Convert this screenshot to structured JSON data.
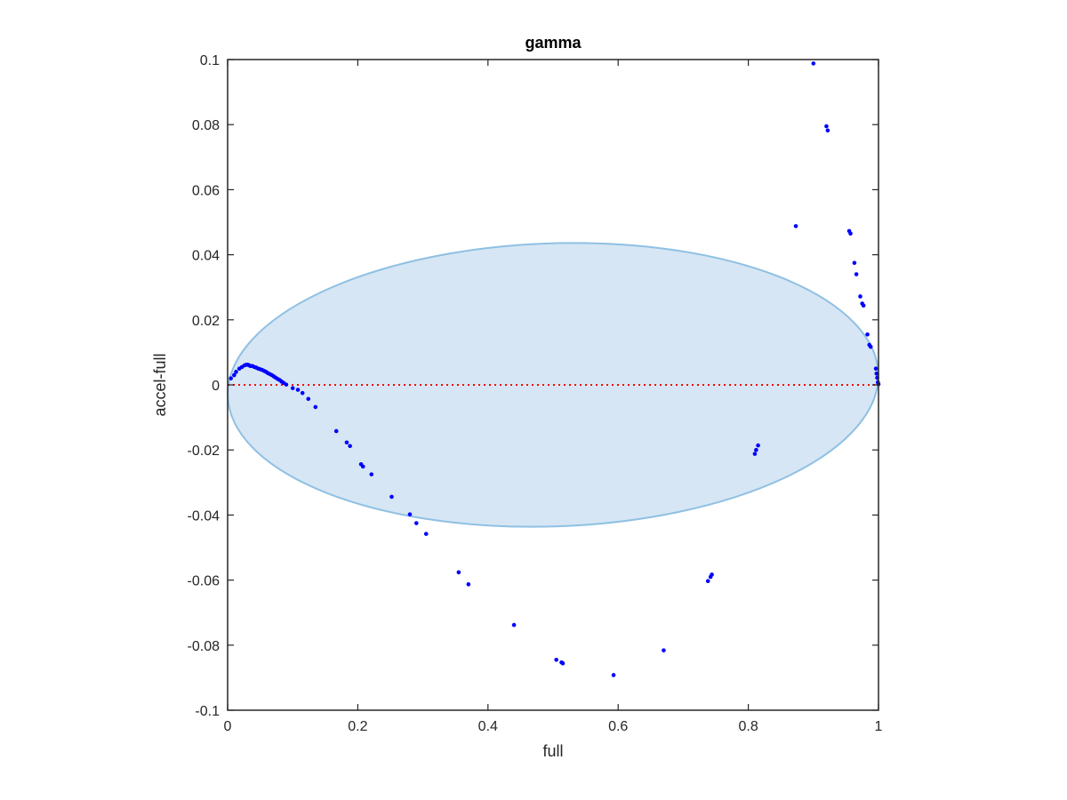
{
  "chart_data": {
    "type": "scatter",
    "title": "gamma",
    "xlabel": "full",
    "ylabel": "accel-full",
    "xlim": [
      0,
      1
    ],
    "ylim": [
      -0.1,
      0.1
    ],
    "xticks": [
      0,
      0.2,
      0.4,
      0.6,
      0.8,
      1
    ],
    "xtick_labels": [
      "0",
      "0.2",
      "0.4",
      "0.6",
      "0.8",
      "1"
    ],
    "yticks": [
      -0.1,
      -0.08,
      -0.06,
      -0.04,
      -0.02,
      0,
      0.02,
      0.04,
      0.06,
      0.08,
      0.1
    ],
    "ytick_labels": [
      "-0.1",
      "-0.08",
      "-0.06",
      "-0.04",
      "-0.02",
      "0",
      "0.02",
      "0.04",
      "0.06",
      "0.08",
      "0.1"
    ],
    "grid": false,
    "colors": {
      "points": "#0000ff",
      "zero_line": "#ff0000",
      "ellipse_fill": "#d6e6f4",
      "ellipse_stroke": "#8fc0e3",
      "axes": "#262626"
    },
    "reference_line": {
      "y": 0,
      "style": "dotted"
    },
    "ellipse": {
      "cx": 0.5,
      "cy": 0.0,
      "rx": 0.5,
      "ry": 0.0435,
      "angle_deg": -2
    },
    "x": [
      0.005,
      0.01,
      0.013,
      0.018,
      0.022,
      0.026,
      0.029,
      0.031,
      0.033,
      0.035,
      0.038,
      0.041,
      0.044,
      0.047,
      0.05,
      0.053,
      0.056,
      0.059,
      0.062,
      0.065,
      0.068,
      0.071,
      0.074,
      0.077,
      0.08,
      0.083,
      0.086,
      0.09,
      0.1,
      0.108,
      0.115,
      0.124,
      0.135,
      0.167,
      0.183,
      0.188,
      0.205,
      0.208,
      0.221,
      0.252,
      0.28,
      0.29,
      0.305,
      0.355,
      0.37,
      0.44,
      0.505,
      0.513,
      0.515,
      0.593,
      0.67,
      0.738,
      0.742,
      0.744,
      0.81,
      0.812,
      0.815,
      0.873,
      0.9,
      0.92,
      0.922,
      0.955,
      0.957,
      0.963,
      0.966,
      0.972,
      0.975,
      0.977,
      0.983,
      0.986,
      0.988,
      0.996,
      0.997,
      0.998,
      0.999,
      1.0
    ],
    "y": [
      0.002,
      0.003,
      0.004,
      0.005,
      0.0055,
      0.006,
      0.0062,
      0.0062,
      0.006,
      0.0058,
      0.0058,
      0.0055,
      0.0053,
      0.005,
      0.0048,
      0.0046,
      0.0043,
      0.004,
      0.0036,
      0.0033,
      0.003,
      0.0026,
      0.0022,
      0.0018,
      0.0015,
      0.001,
      0.0006,
      0.0001,
      -0.001,
      -0.0015,
      -0.0025,
      -0.0043,
      -0.0068,
      -0.0142,
      -0.0177,
      -0.0188,
      -0.0244,
      -0.0251,
      -0.0275,
      -0.0344,
      -0.0398,
      -0.0425,
      -0.0458,
      -0.0576,
      -0.0613,
      -0.0738,
      -0.0845,
      -0.0853,
      -0.0856,
      -0.0892,
      -0.0816,
      -0.0603,
      -0.059,
      -0.0583,
      -0.0212,
      -0.02,
      -0.0186,
      0.0488,
      0.0988,
      0.0795,
      0.0782,
      0.0473,
      0.0465,
      0.0375,
      0.034,
      0.0272,
      0.025,
      0.0244,
      0.0155,
      0.0123,
      0.0117,
      0.005,
      0.0035,
      0.0022,
      0.0008,
      0.0002
    ]
  }
}
